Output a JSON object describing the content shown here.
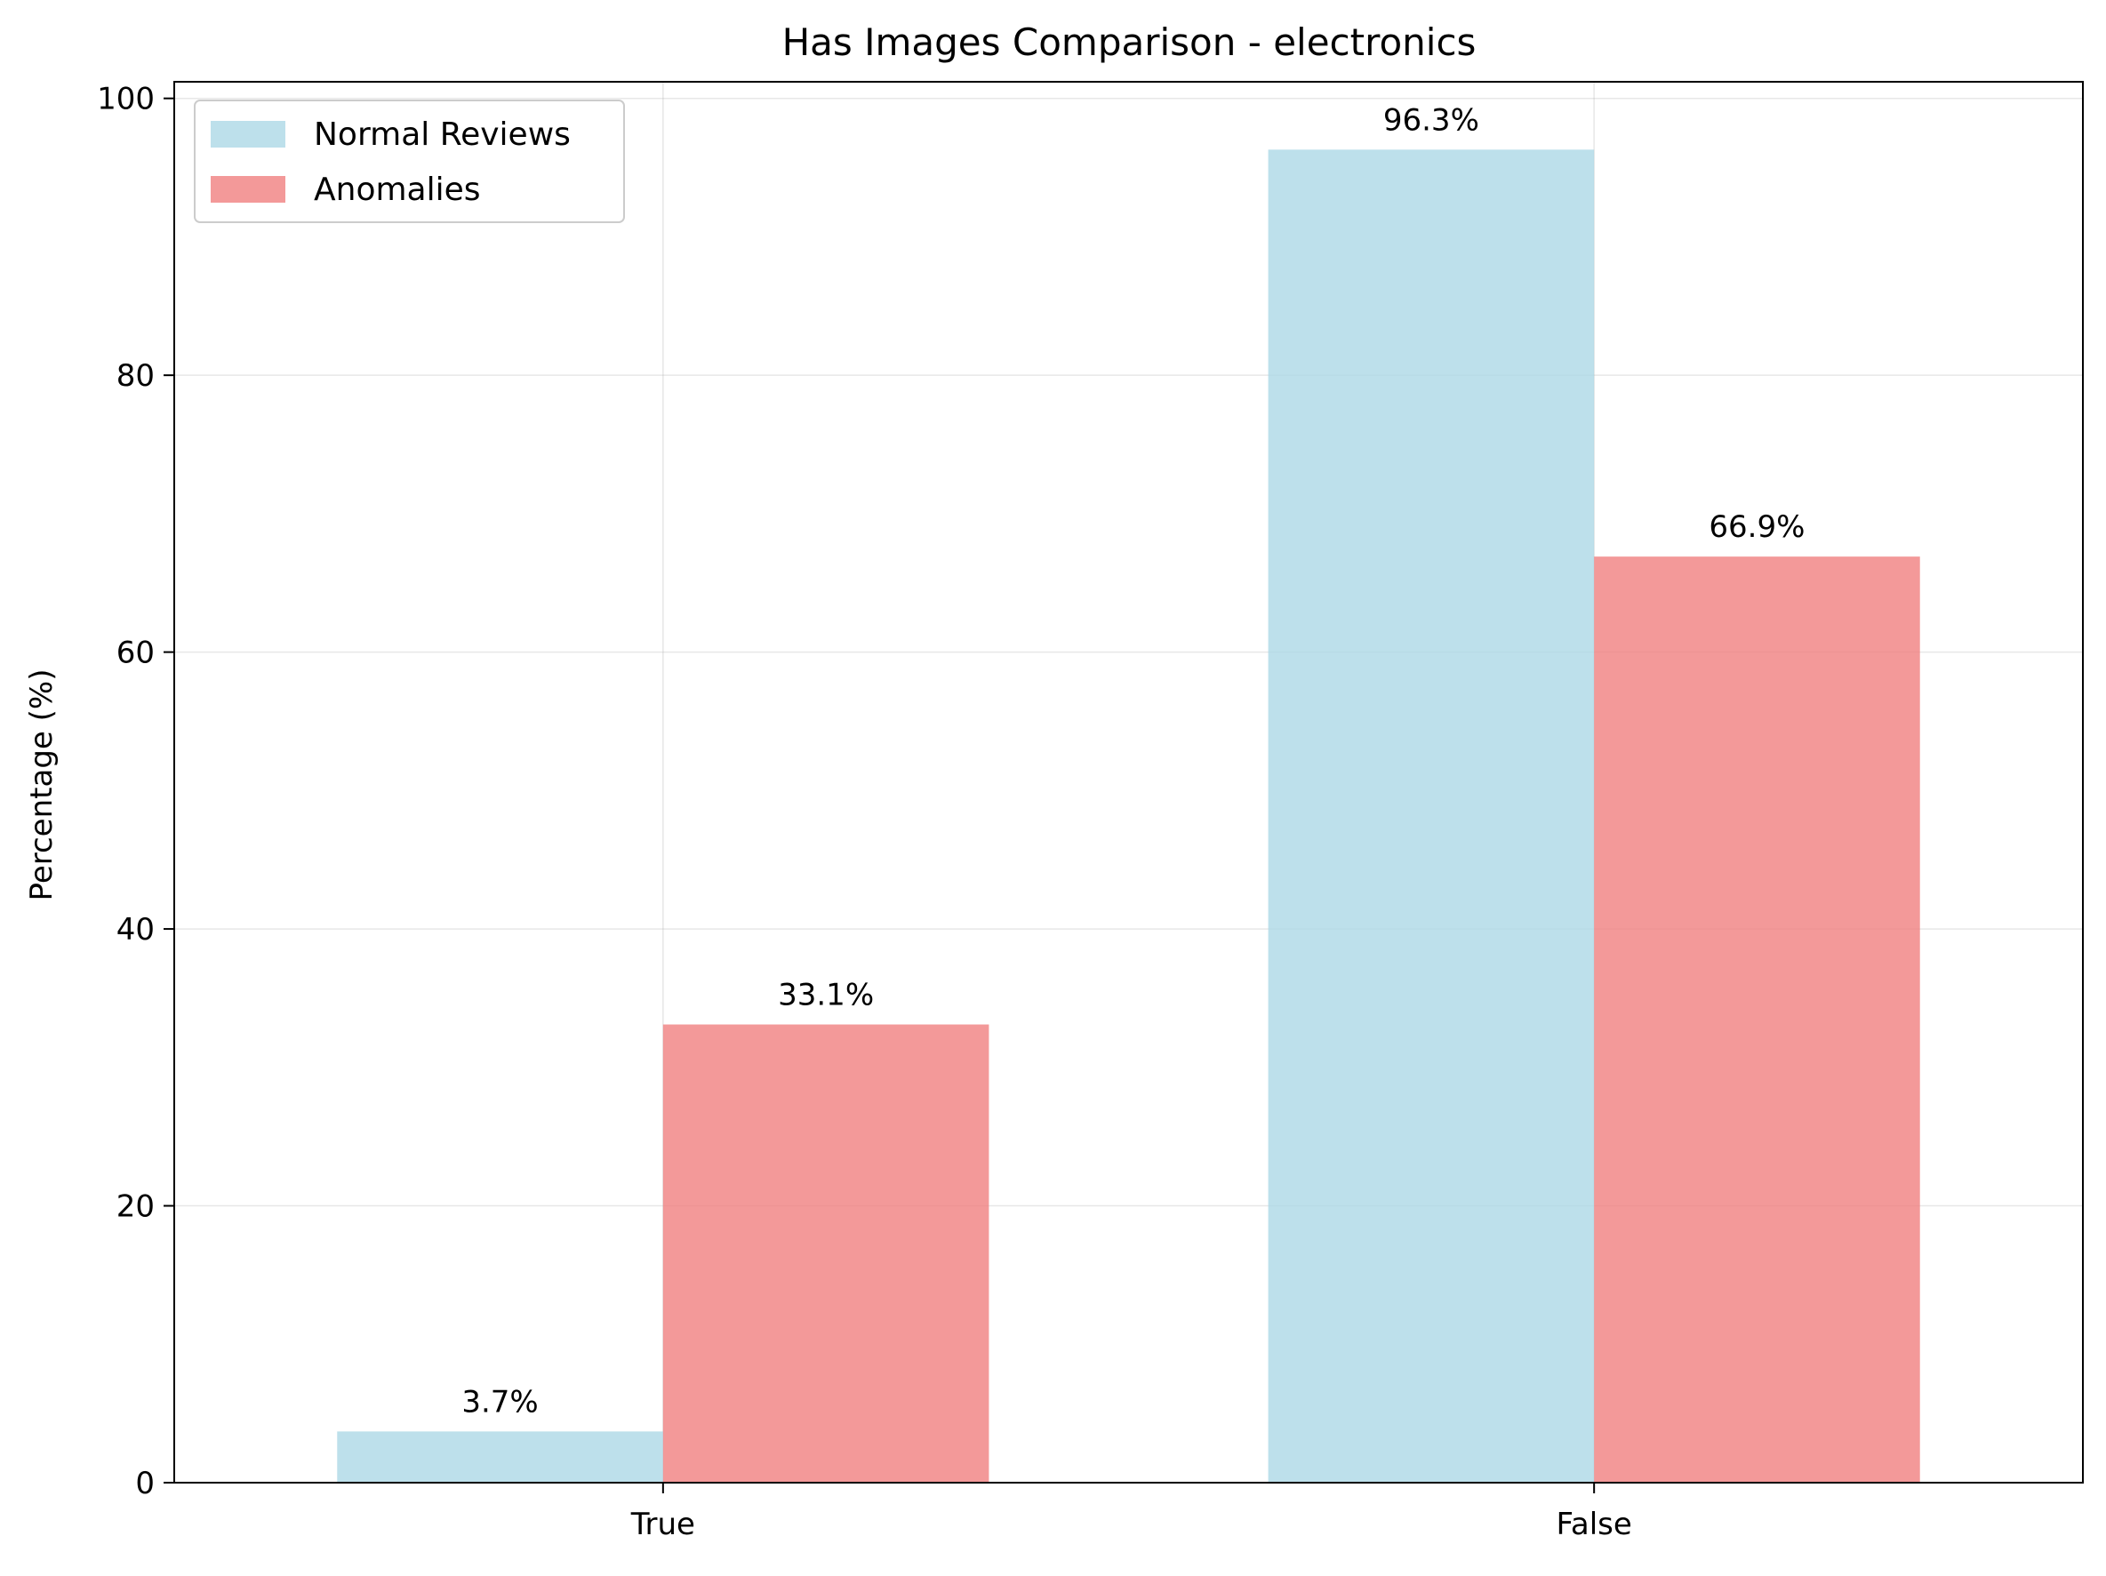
{
  "chart_data": {
    "type": "bar",
    "title": "Has Images Comparison - electronics",
    "xlabel": "",
    "ylabel": "Percentage (%)",
    "categories": [
      "True",
      "False"
    ],
    "series": [
      {
        "name": "Normal Reviews",
        "values": [
          3.7,
          96.3
        ],
        "labels": [
          "3.7%",
          "96.3%"
        ],
        "color": "#add8e6"
      },
      {
        "name": "Anomalies",
        "values": [
          33.1,
          66.9
        ],
        "labels": [
          "33.1%",
          "66.9%"
        ],
        "color": "#f08080"
      }
    ],
    "ylim": [
      0,
      101.2
    ],
    "yticks": [
      0,
      20,
      40,
      60,
      80,
      100
    ],
    "ytick_labels": [
      "0",
      "20",
      "40",
      "60",
      "80",
      "100"
    ],
    "grid": true,
    "legend_position": "top-left"
  }
}
